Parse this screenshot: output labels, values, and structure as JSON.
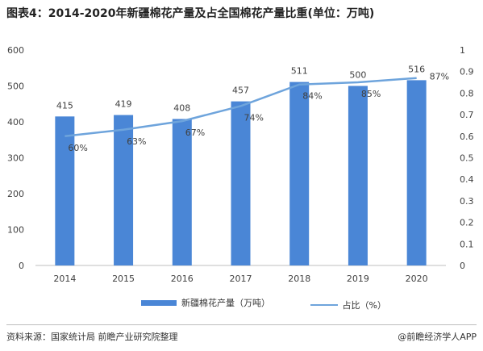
{
  "title": "图表4：2014-2020年新疆棉花产量及占全国棉花产量比重(单位：万吨)",
  "legend": {
    "bar": "新疆棉花产量（万吨）",
    "line": "占比（%）"
  },
  "source": "资料来源：国家统计局 前瞻产业研究院整理",
  "brand": "@前瞻经济学人APP",
  "colors": {
    "bar": "#4a86d6",
    "line": "#6ea4dc"
  },
  "chart_data": {
    "type": "bar",
    "categories": [
      "2014",
      "2015",
      "2016",
      "2017",
      "2018",
      "2019",
      "2020"
    ],
    "series": [
      {
        "name": "新疆棉花产量（万吨）",
        "type": "bar",
        "axis": "left",
        "values": [
          415,
          419,
          408,
          457,
          511,
          500,
          516
        ],
        "labels": [
          "415",
          "419",
          "408",
          "457",
          "511",
          "500",
          "516"
        ]
      },
      {
        "name": "占比（%）",
        "type": "line",
        "axis": "right",
        "values": [
          0.6,
          0.63,
          0.67,
          0.74,
          0.84,
          0.85,
          0.87
        ],
        "labels": [
          "60%",
          "63%",
          "67%",
          "74%",
          "84%",
          "85%",
          "87%"
        ]
      }
    ],
    "y_left": {
      "min": 0,
      "max": 600,
      "ticks": [
        "0",
        "100",
        "200",
        "300",
        "400",
        "500",
        "600"
      ]
    },
    "y_right": {
      "min": 0,
      "max": 1,
      "ticks": [
        "0",
        "0.1",
        "0.2",
        "0.3",
        "0.4",
        "0.5",
        "0.6",
        "0.7",
        "0.8",
        "0.9",
        "1"
      ]
    },
    "grid": false
  }
}
